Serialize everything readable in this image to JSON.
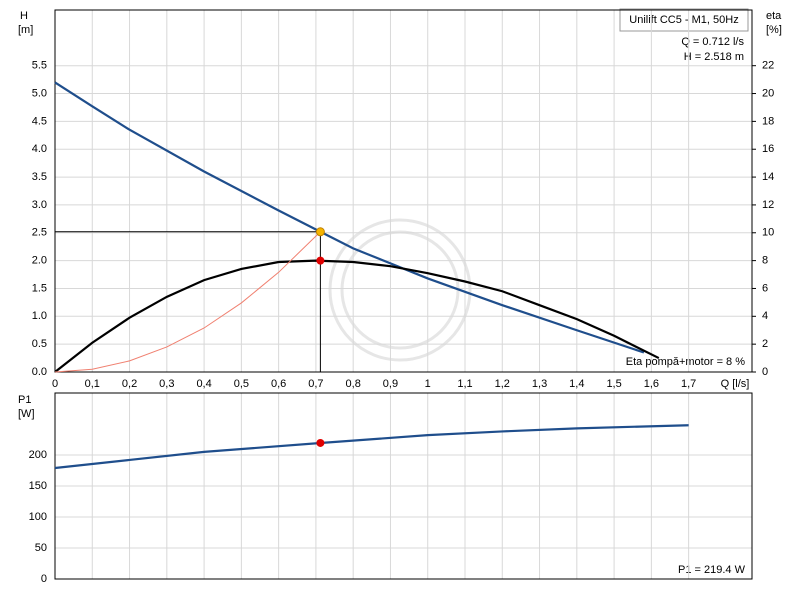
{
  "chart_data": [
    {
      "type": "line",
      "title": "Unilift CC5 - M1, 50Hz",
      "annotations": [
        "Q = 0.712 l/s",
        "H = 2.518 m",
        "Eta pompă+motor = 8 %"
      ],
      "xlabel": "Q [l/s]",
      "ylabel": [
        "H",
        "[m]"
      ],
      "y2label": [
        "eta",
        "[%]"
      ],
      "xlim": [
        0,
        1.87
      ],
      "ylim": [
        0,
        6.5
      ],
      "y2lim": [
        0,
        26
      ],
      "xticks": [
        {
          "value": 0,
          "label": "0"
        },
        {
          "value": 0.1,
          "label": "0,1"
        },
        {
          "value": 0.2,
          "label": "0,2"
        },
        {
          "value": 0.3,
          "label": "0,3"
        },
        {
          "value": 0.4,
          "label": "0,4"
        },
        {
          "value": 0.5,
          "label": "0,5"
        },
        {
          "value": 0.6,
          "label": "0,6"
        },
        {
          "value": 0.7,
          "label": "0,7"
        },
        {
          "value": 0.8,
          "label": "0,8"
        },
        {
          "value": 0.9,
          "label": "0,9"
        },
        {
          "value": 1,
          "label": "1"
        },
        {
          "value": 1.1,
          "label": "1,1"
        },
        {
          "value": 1.2,
          "label": "1,2"
        },
        {
          "value": 1.3,
          "label": "1,3"
        },
        {
          "value": 1.4,
          "label": "1,4"
        },
        {
          "value": 1.5,
          "label": "1,5"
        },
        {
          "value": 1.6,
          "label": "1,6"
        },
        {
          "value": 1.7,
          "label": "1,7"
        }
      ],
      "yticks": [
        {
          "value": 0,
          "label": "0.0"
        },
        0.5,
        {
          "value": 1,
          "label": "1.0"
        },
        1.5,
        {
          "value": 2,
          "label": "2.0"
        },
        2.5,
        {
          "value": 3,
          "label": "3.0"
        },
        3.5,
        {
          "value": 4,
          "label": "4.0"
        },
        4.5,
        {
          "value": 5,
          "label": "5.0"
        },
        5.5
      ],
      "y2ticks": [
        0,
        2,
        4,
        6,
        8,
        10,
        12,
        14,
        16,
        18,
        20,
        22
      ],
      "grid": true,
      "series": [
        {
          "color": "#1f4e8c",
          "x": [
            0,
            0.1,
            0.2,
            0.4,
            0.6,
            0.712,
            0.8,
            1.0,
            1.2,
            1.4,
            1.58
          ],
          "values": [
            5.2,
            4.77,
            4.35,
            3.6,
            2.9,
            2.518,
            2.22,
            1.68,
            1.2,
            0.75,
            0.35
          ]
        },
        {
          "color": "#000000",
          "axis": "y2",
          "x": [
            0,
            0.1,
            0.2,
            0.3,
            0.4,
            0.5,
            0.6,
            0.7,
            0.8,
            0.9,
            1.0,
            1.1,
            1.2,
            1.3,
            1.4,
            1.5,
            1.62
          ],
          "values": [
            0,
            2.1,
            3.9,
            5.4,
            6.6,
            7.4,
            7.9,
            8,
            7.9,
            7.6,
            7.1,
            6.5,
            5.8,
            4.8,
            3.8,
            2.6,
            1.0
          ]
        },
        {
          "color": "#f08070",
          "x": [
            0,
            0.1,
            0.2,
            0.3,
            0.4,
            0.5,
            0.6,
            0.712
          ],
          "values": [
            0,
            0.05,
            0.2,
            0.45,
            0.79,
            1.24,
            1.79,
            2.518
          ]
        }
      ],
      "points": [
        {
          "x": 0.712,
          "y": 2.518,
          "color": "#f5b400"
        },
        {
          "x": 0.712,
          "y": 8,
          "axis": "y2",
          "color": "#e00000"
        }
      ]
    },
    {
      "type": "line",
      "ylabel": [
        "P1",
        "[W]"
      ],
      "annotations": [
        "P1 = 219.4 W"
      ],
      "xlim": [
        0,
        1.87
      ],
      "ylim": [
        0,
        300
      ],
      "yticks": [
        0,
        50,
        100,
        150,
        200
      ],
      "grid": true,
      "series": [
        {
          "color": "#1f4e8c",
          "x": [
            0,
            0.2,
            0.4,
            0.712,
            1.0,
            1.2,
            1.4,
            1.7
          ],
          "values": [
            179,
            192,
            205,
            219.4,
            232,
            238,
            243,
            248
          ]
        }
      ],
      "points": [
        {
          "x": 0.712,
          "y": 219.4,
          "color": "#e00000"
        }
      ]
    }
  ]
}
